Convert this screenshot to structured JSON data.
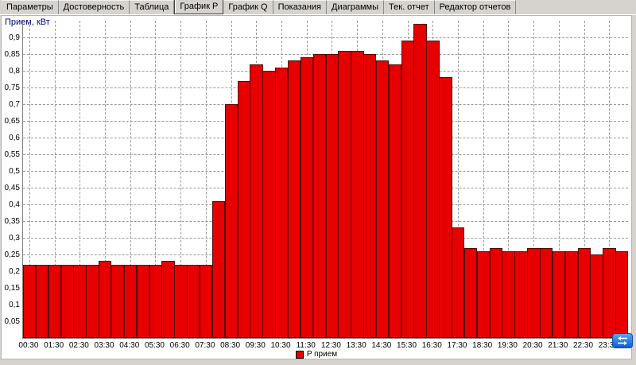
{
  "tabs": [
    {
      "id": "parametry",
      "label": "Параметры",
      "active": false
    },
    {
      "id": "dostovernost",
      "label": "Достоверность",
      "active": false
    },
    {
      "id": "tablica",
      "label": "Таблица",
      "active": false
    },
    {
      "id": "grafik-p",
      "label": "График P",
      "active": true
    },
    {
      "id": "grafik-q",
      "label": "График Q",
      "active": false
    },
    {
      "id": "pokazaniya",
      "label": "Показания",
      "active": false
    },
    {
      "id": "diagrammy",
      "label": "Диаграммы",
      "active": false
    },
    {
      "id": "tek-otchet",
      "label": "Тек. отчет",
      "active": false
    },
    {
      "id": "redaktor-otchetov",
      "label": "Редактор отчетов",
      "active": false
    }
  ],
  "colors": {
    "window_background": "#d6d3ce",
    "plot_background": "#ffffff",
    "grid": "#9a9a9a",
    "bar_fill": "#e60000",
    "bar_border": "#5a0000",
    "axis_title": "#000080"
  },
  "chart_data": {
    "type": "bar",
    "title": "",
    "ylabel": "Прием, кВт",
    "xlabel": "",
    "ylim": [
      0,
      0.95
    ],
    "grid": true,
    "legend_position": "bottom",
    "y_ticks": [
      {
        "value": 0.05,
        "label": "0,05"
      },
      {
        "value": 0.1,
        "label": "0,1"
      },
      {
        "value": 0.15,
        "label": "0,15"
      },
      {
        "value": 0.2,
        "label": "0,2"
      },
      {
        "value": 0.25,
        "label": "0,25"
      },
      {
        "value": 0.3,
        "label": "0,3"
      },
      {
        "value": 0.35,
        "label": "0,35"
      },
      {
        "value": 0.4,
        "label": "0,4"
      },
      {
        "value": 0.45,
        "label": "0,45"
      },
      {
        "value": 0.5,
        "label": "0,5"
      },
      {
        "value": 0.55,
        "label": "0,55"
      },
      {
        "value": 0.6,
        "label": "0,6"
      },
      {
        "value": 0.65,
        "label": "0,65"
      },
      {
        "value": 0.7,
        "label": "0,7"
      },
      {
        "value": 0.75,
        "label": "0,75"
      },
      {
        "value": 0.8,
        "label": "0,8"
      },
      {
        "value": 0.85,
        "label": "0,85"
      },
      {
        "value": 0.9,
        "label": "0,9"
      }
    ],
    "x_tick_labels": [
      "00:30",
      "01:30",
      "02:30",
      "03:30",
      "04:30",
      "05:30",
      "06:30",
      "07:30",
      "08:30",
      "09:30",
      "10:30",
      "11:30",
      "12:30",
      "13:30",
      "14:30",
      "15:30",
      "16:30",
      "17:30",
      "18:30",
      "19:30",
      "20:30",
      "21:30",
      "22:30",
      "23:30"
    ],
    "x": [
      "00:30",
      "01:00",
      "01:30",
      "02:00",
      "02:30",
      "03:00",
      "03:30",
      "04:00",
      "04:30",
      "05:00",
      "05:30",
      "06:00",
      "06:30",
      "07:00",
      "07:30",
      "08:00",
      "08:30",
      "09:00",
      "09:30",
      "10:00",
      "10:30",
      "11:00",
      "11:30",
      "12:00",
      "12:30",
      "13:00",
      "13:30",
      "14:00",
      "14:30",
      "15:00",
      "15:30",
      "16:00",
      "16:30",
      "17:00",
      "17:30",
      "18:00",
      "18:30",
      "19:00",
      "19:30",
      "20:00",
      "20:30",
      "21:00",
      "21:30",
      "22:00",
      "22:30",
      "23:00",
      "23:30",
      "24:00"
    ],
    "series": [
      {
        "name": "P прием",
        "color": "#e60000",
        "values": [
          0.22,
          0.22,
          0.22,
          0.22,
          0.22,
          0.22,
          0.23,
          0.22,
          0.22,
          0.22,
          0.22,
          0.23,
          0.22,
          0.22,
          0.22,
          0.41,
          0.7,
          0.77,
          0.82,
          0.8,
          0.81,
          0.83,
          0.84,
          0.85,
          0.85,
          0.86,
          0.86,
          0.85,
          0.83,
          0.82,
          0.89,
          0.94,
          0.89,
          0.78,
          0.33,
          0.27,
          0.26,
          0.27,
          0.26,
          0.26,
          0.27,
          0.27,
          0.26,
          0.26,
          0.27,
          0.25,
          0.27,
          0.26
        ]
      }
    ]
  }
}
